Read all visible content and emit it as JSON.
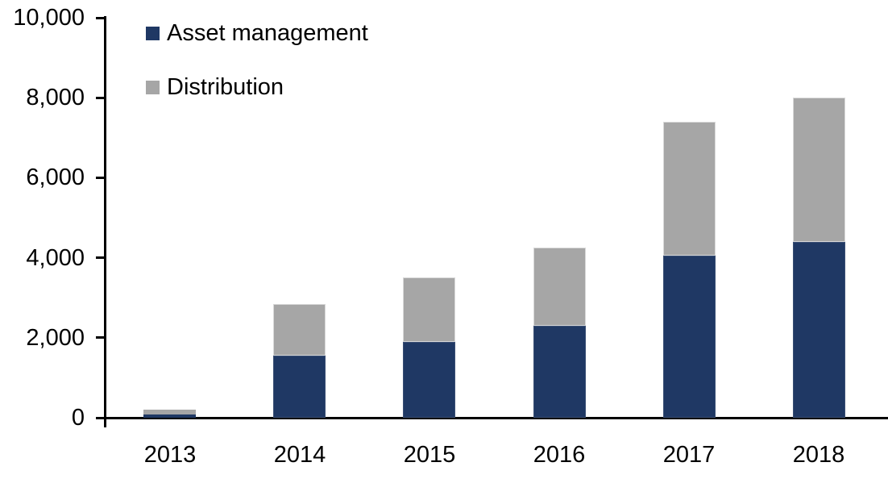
{
  "chart_data": {
    "type": "bar",
    "stacked": true,
    "title": "",
    "xlabel": "",
    "ylabel": "",
    "categories": [
      "2013",
      "2014",
      "2015",
      "2016",
      "2017",
      "2018"
    ],
    "series": [
      {
        "name": "Asset management",
        "color": "#1F3864",
        "values": [
          90,
          1550,
          1900,
          2300,
          4050,
          4400
        ]
      },
      {
        "name": "Distribution",
        "color": "#A6A6A6",
        "values": [
          110,
          1300,
          1600,
          1950,
          3350,
          3600
        ]
      }
    ],
    "totals": [
      200,
      2850,
      3500,
      4250,
      7400,
      8000
    ],
    "ylim": [
      0,
      10000
    ],
    "ytick_interval": 2000,
    "yticks": [
      0,
      2000,
      4000,
      6000,
      8000,
      10000
    ],
    "ytick_labels": [
      "0",
      "2,000",
      "4,000",
      "6,000",
      "8,000",
      "10,000"
    ],
    "legend_position": "top-left",
    "grid": false,
    "axis_color": "#000000",
    "text_color": "#000000",
    "background_color": "#FFFFFF"
  }
}
